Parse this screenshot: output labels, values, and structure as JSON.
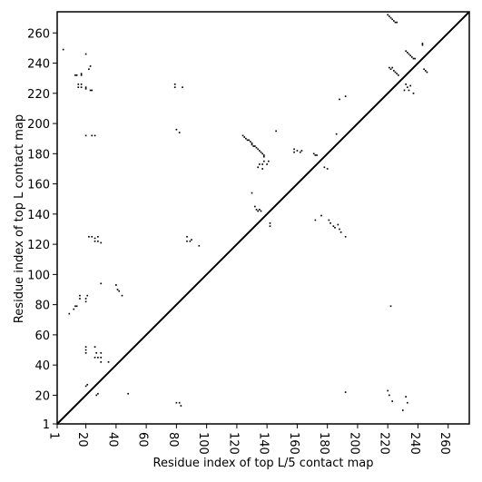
{
  "chart_data": {
    "type": "scatter",
    "title": "",
    "xlabel": "Residue index of top L/5 contact map",
    "ylabel": "Residue index of top L contact map",
    "xlim": [
      1,
      274
    ],
    "ylim": [
      1,
      274
    ],
    "xticks": [
      "1",
      "20",
      "40",
      "60",
      "80",
      "100",
      "120",
      "140",
      "160",
      "180",
      "200",
      "220",
      "240",
      "260"
    ],
    "xtick_values": [
      1,
      20,
      40,
      60,
      80,
      100,
      120,
      140,
      160,
      180,
      200,
      220,
      240,
      260
    ],
    "yticks": [
      "1",
      "20",
      "40",
      "60",
      "80",
      "100",
      "120",
      "140",
      "160",
      "180",
      "200",
      "220",
      "240",
      "260"
    ],
    "ytick_values": [
      1,
      20,
      40,
      60,
      80,
      100,
      120,
      140,
      160,
      180,
      200,
      220,
      240,
      260
    ],
    "diagonal": true,
    "grid": false,
    "marker_color": "#000000",
    "series": [
      {
        "points": [
          [
            5,
            249
          ],
          [
            13,
            232
          ],
          [
            14,
            232
          ],
          [
            17,
            233
          ],
          [
            17,
            232
          ],
          [
            20,
            246
          ],
          [
            22,
            236
          ],
          [
            23,
            238
          ],
          [
            20,
            223
          ],
          [
            20,
            224
          ],
          [
            24,
            222
          ],
          [
            23,
            222
          ],
          [
            15,
            226
          ],
          [
            15,
            224
          ],
          [
            17,
            226
          ],
          [
            17,
            224
          ],
          [
            20,
            192
          ],
          [
            24,
            192
          ],
          [
            26,
            192
          ],
          [
            124,
            192
          ],
          [
            125,
            191
          ],
          [
            126,
            190
          ],
          [
            127,
            189
          ],
          [
            128,
            189
          ],
          [
            129,
            188
          ],
          [
            130,
            187
          ],
          [
            130,
            186
          ],
          [
            131,
            185
          ],
          [
            132,
            185
          ],
          [
            133,
            184
          ],
          [
            134,
            183
          ],
          [
            135,
            182
          ],
          [
            136,
            181
          ],
          [
            137,
            180
          ],
          [
            138,
            179
          ],
          [
            138,
            178
          ],
          [
            135,
            173
          ],
          [
            134,
            171
          ],
          [
            137,
            170
          ],
          [
            137,
            173
          ],
          [
            138,
            175
          ],
          [
            140,
            173
          ],
          [
            141,
            175
          ],
          [
            146,
            195
          ],
          [
            158,
            183
          ],
          [
            158,
            181
          ],
          [
            160,
            182
          ],
          [
            162,
            181
          ],
          [
            163,
            182
          ],
          [
            171,
            180
          ],
          [
            172,
            179
          ],
          [
            173,
            179
          ],
          [
            178,
            171
          ],
          [
            180,
            170
          ],
          [
            186,
            193
          ],
          [
            188,
            216
          ],
          [
            192,
            218
          ],
          [
            130,
            154
          ],
          [
            132,
            145
          ],
          [
            133,
            143
          ],
          [
            134,
            142
          ],
          [
            135,
            143
          ],
          [
            136,
            142
          ],
          [
            142,
            134
          ],
          [
            142,
            132
          ],
          [
            172,
            136
          ],
          [
            176,
            139
          ],
          [
            181,
            136
          ],
          [
            182,
            134
          ],
          [
            184,
            132
          ],
          [
            185,
            131
          ],
          [
            187,
            133
          ],
          [
            188,
            130
          ],
          [
            189,
            128
          ],
          [
            192,
            125
          ],
          [
            80,
            196
          ],
          [
            82,
            194
          ],
          [
            79,
            226
          ],
          [
            79,
            224
          ],
          [
            84,
            224
          ],
          [
            22,
            125
          ],
          [
            24,
            125
          ],
          [
            26,
            124
          ],
          [
            28,
            125
          ],
          [
            28,
            122
          ],
          [
            30,
            121
          ],
          [
            26,
            122
          ],
          [
            30,
            94
          ],
          [
            87,
            125
          ],
          [
            87,
            122
          ],
          [
            89,
            122
          ],
          [
            90,
            123
          ],
          [
            95,
            119
          ],
          [
            40,
            93
          ],
          [
            41,
            90
          ],
          [
            42,
            89
          ],
          [
            44,
            86
          ],
          [
            48,
            21
          ],
          [
            9,
            74
          ],
          [
            12,
            77
          ],
          [
            13,
            79
          ],
          [
            14,
            79
          ],
          [
            16,
            84
          ],
          [
            16,
            86
          ],
          [
            20,
            84
          ],
          [
            20,
            82
          ],
          [
            21,
            86
          ],
          [
            20,
            52
          ],
          [
            20,
            50
          ],
          [
            20,
            48
          ],
          [
            26,
            52
          ],
          [
            27,
            48
          ],
          [
            28,
            45
          ],
          [
            30,
            48
          ],
          [
            30,
            45
          ],
          [
            30,
            42
          ],
          [
            26,
            45
          ],
          [
            35,
            42
          ],
          [
            20,
            26
          ],
          [
            21,
            27
          ],
          [
            27,
            20
          ],
          [
            28,
            21
          ],
          [
            80,
            15
          ],
          [
            82,
            15
          ],
          [
            83,
            13
          ],
          [
            220,
            272
          ],
          [
            221,
            271
          ],
          [
            222,
            270
          ],
          [
            223,
            269
          ],
          [
            224,
            268
          ],
          [
            225,
            267
          ],
          [
            226,
            267
          ],
          [
            221,
            237
          ],
          [
            222,
            236
          ],
          [
            223,
            237
          ],
          [
            224,
            235
          ],
          [
            225,
            234
          ],
          [
            226,
            233
          ],
          [
            227,
            232
          ],
          [
            232,
            248
          ],
          [
            233,
            247
          ],
          [
            234,
            246
          ],
          [
            235,
            245
          ],
          [
            236,
            244
          ],
          [
            237,
            243
          ],
          [
            238,
            243
          ],
          [
            243,
            253
          ],
          [
            243,
            252
          ],
          [
            244,
            236
          ],
          [
            245,
            235
          ],
          [
            246,
            234
          ],
          [
            232,
            226
          ],
          [
            233,
            224
          ],
          [
            234,
            222
          ],
          [
            235,
            225
          ],
          [
            237,
            220
          ],
          [
            231,
            222
          ],
          [
            220,
            23
          ],
          [
            221,
            20
          ],
          [
            223,
            16
          ],
          [
            222,
            79
          ],
          [
            230,
            10
          ],
          [
            232,
            19
          ],
          [
            233,
            15
          ],
          [
            192,
            22
          ]
        ]
      }
    ]
  }
}
